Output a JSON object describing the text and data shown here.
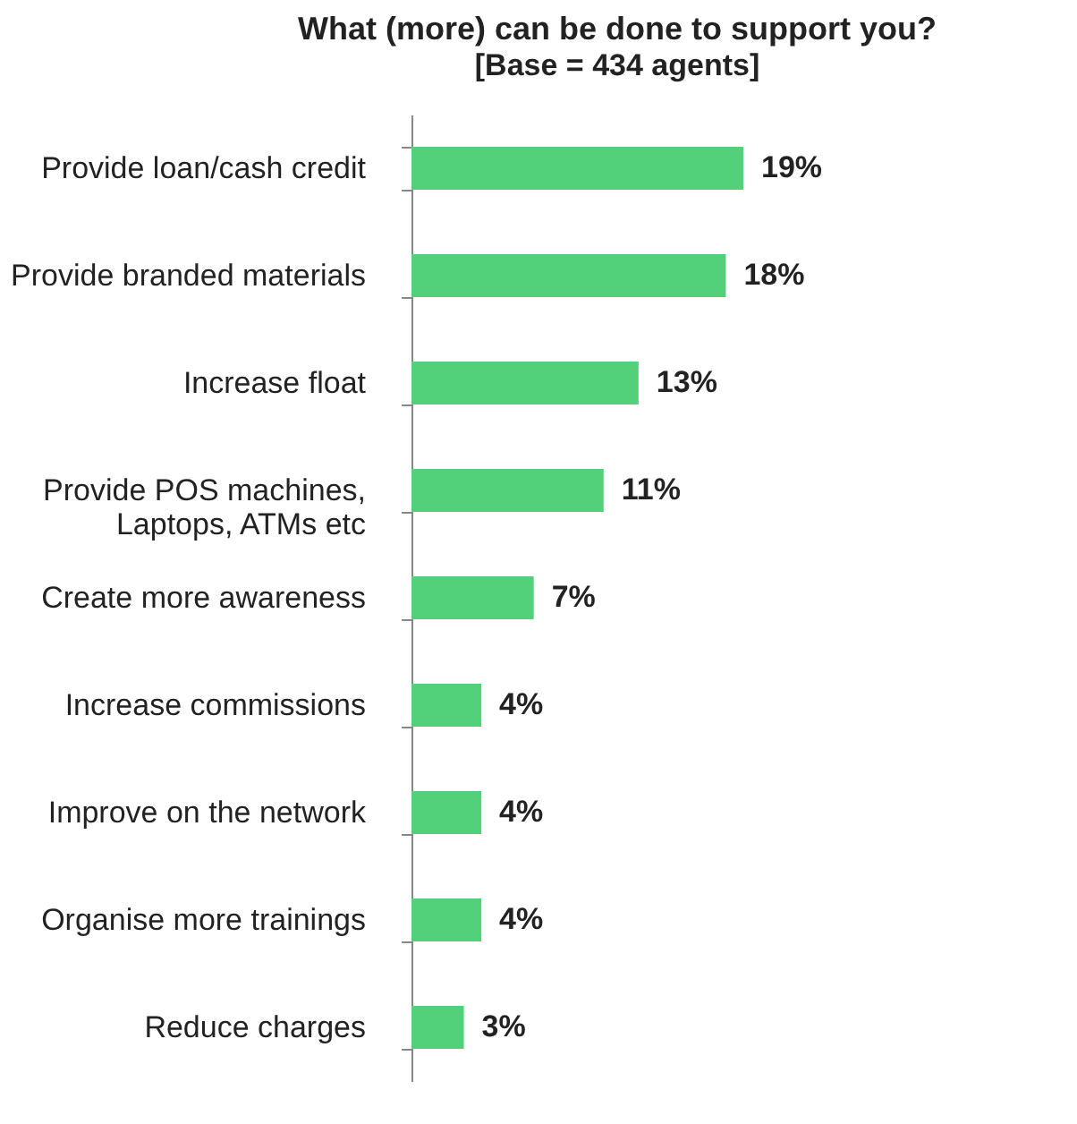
{
  "chart_data": {
    "type": "bar",
    "orientation": "horizontal",
    "title": "What (more) can be done to support you?",
    "subtitle": "[Base = 434 agents]",
    "categories": [
      "Provide loan/cash credit",
      "Provide branded materials",
      "Increase float",
      "Provide POS machines,\nLaptops, ATMs etc",
      "Create more awareness",
      "Increase commissions",
      "Improve on the network",
      "Organise more trainings",
      "Reduce charges"
    ],
    "values": [
      19,
      18,
      13,
      11,
      7,
      4,
      4,
      4,
      3
    ],
    "value_labels": [
      "19%",
      "18%",
      "13%",
      "11%",
      "7%",
      "4%",
      "4%",
      "4%",
      "3%"
    ],
    "color": "#53d17a"
  }
}
